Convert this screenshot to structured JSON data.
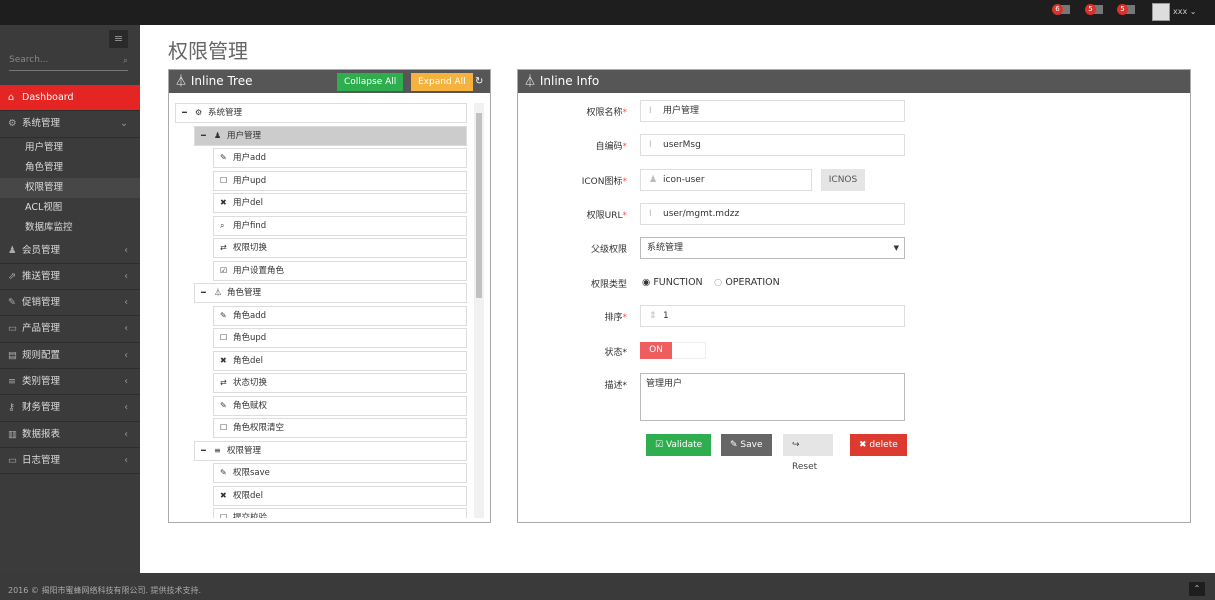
{
  "topbar": {
    "badges": [
      {
        "count": "6",
        "icon": "bell-icon"
      },
      {
        "count": "5",
        "icon": "envelope-icon"
      },
      {
        "count": "5",
        "icon": "tasks-icon"
      }
    ],
    "user": "xxx"
  },
  "sidebar": {
    "search_placeholder": "Search...",
    "items": [
      {
        "label": "Dashboard",
        "icon": "home-icon",
        "active": true
      },
      {
        "label": "系统管理",
        "icon": "cogs-icon",
        "expanded": true,
        "children": [
          "用户管理",
          "角色管理",
          "权限管理",
          "ACL视图",
          "数据库监控"
        ],
        "selected_child": "权限管理"
      },
      {
        "label": "会员管理",
        "icon": "user-icon"
      },
      {
        "label": "推送管理",
        "icon": "share-icon"
      },
      {
        "label": "促销管理",
        "icon": "pencil-icon"
      },
      {
        "label": "产品管理",
        "icon": "inbox-icon"
      },
      {
        "label": "规则配置",
        "icon": "list-alt-icon"
      },
      {
        "label": "类别管理",
        "icon": "list-icon"
      },
      {
        "label": "财务管理",
        "icon": "key-icon"
      },
      {
        "label": "数据报表",
        "icon": "bar-chart-icon"
      },
      {
        "label": "日志管理",
        "icon": "credit-card-icon"
      }
    ]
  },
  "page": {
    "title": "权限管理"
  },
  "tree_panel": {
    "title": "Inline Tree",
    "collapse_all": "Collapse All",
    "expand_all": "Expand All",
    "nodes": [
      {
        "label": "系统管理",
        "level": 0,
        "icon": "cogs-icon",
        "toggle": "−"
      },
      {
        "label": "用户管理",
        "level": 1,
        "icon": "user-icon",
        "toggle": "−",
        "highlighted": true
      },
      {
        "label": "用户add",
        "level": 2,
        "icon": "pencil-icon"
      },
      {
        "label": "用户upd",
        "level": 2,
        "icon": "edit-icon"
      },
      {
        "label": "用户del",
        "level": 2,
        "icon": "remove-icon"
      },
      {
        "label": "用户find",
        "level": 2,
        "icon": "search-icon"
      },
      {
        "label": "权限切换",
        "level": 2,
        "icon": "retweet-icon"
      },
      {
        "label": "用户设置角色",
        "level": 2,
        "icon": "check-icon"
      },
      {
        "label": "角色管理",
        "level": 1,
        "icon": "sitemap-icon",
        "toggle": "−"
      },
      {
        "label": "角色add",
        "level": 2,
        "icon": "pencil-icon"
      },
      {
        "label": "角色upd",
        "level": 2,
        "icon": "edit-icon"
      },
      {
        "label": "角色del",
        "level": 2,
        "icon": "remove-icon"
      },
      {
        "label": "状态切换",
        "level": 2,
        "icon": "retweet-icon"
      },
      {
        "label": "角色赋权",
        "level": 2,
        "icon": "pencil-icon"
      },
      {
        "label": "角色权限清空",
        "level": 2,
        "icon": "checkbox-empty-icon"
      },
      {
        "label": "权限管理",
        "level": 1,
        "icon": "list-icon",
        "toggle": "−"
      },
      {
        "label": "权限save",
        "level": 2,
        "icon": "pencil-icon"
      },
      {
        "label": "权限del",
        "level": 2,
        "icon": "remove-icon"
      },
      {
        "label": "提交校验",
        "level": 2,
        "icon": "edit-icon"
      }
    ]
  },
  "info_panel": {
    "title": "Inline Info",
    "fields": {
      "name": {
        "label": "权限名称",
        "value": "用户管理"
      },
      "code": {
        "label": "自编码",
        "value": "userMsg"
      },
      "icon": {
        "label": "ICON图标",
        "value": "icon-user",
        "button": "ICNOS"
      },
      "url": {
        "label": "权限URL",
        "value": "user/mgmt.mdzz"
      },
      "parent": {
        "label": "父级权限",
        "value": "系统管理"
      },
      "type": {
        "label": "权限类型",
        "options": [
          "FUNCTION",
          "OPERATION"
        ],
        "selected": "FUNCTION"
      },
      "order": {
        "label": "排序",
        "value": "1"
      },
      "status": {
        "label": "状态",
        "value": "ON"
      },
      "desc": {
        "label": "描述",
        "value": "管理用户"
      }
    },
    "actions": {
      "validate": "Validate",
      "save": "Save",
      "reset": "Reset",
      "delete": "delete"
    }
  },
  "footer": {
    "text": "2016 © 揭阳市蜜蜂网络科技有限公司. 提供技术支持."
  }
}
